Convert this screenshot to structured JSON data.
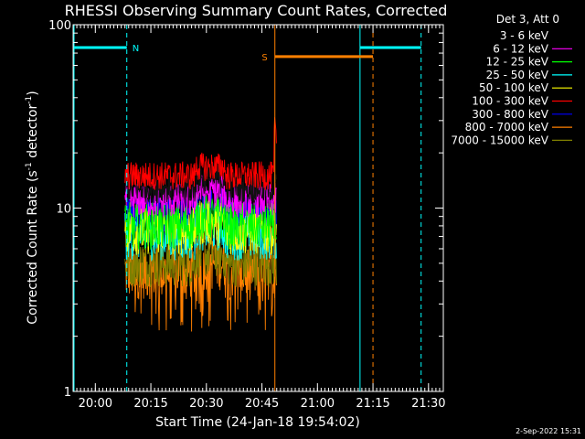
{
  "chart_data": {
    "type": "line",
    "title": "RHESSI Observing Summary Count Rates, Corrected",
    "xlabel": "Start Time (24-Jan-18 19:54:02)",
    "ylabel_main": "Corrected Count Rate (s",
    "ylabel_sup1": "-1",
    "ylabel_mid": " detector",
    "ylabel_sup2": "-1",
    "ylabel_end": ")",
    "y_scale": "log",
    "ylim": [
      1,
      100
    ],
    "xlim_minutes_after_1954": [
      0,
      100
    ],
    "x_ticks": [
      {
        "label": "20:00",
        "t": 6
      },
      {
        "label": "20:15",
        "t": 21
      },
      {
        "label": "20:30",
        "t": 36
      },
      {
        "label": "20:45",
        "t": 51
      },
      {
        "label": "21:00",
        "t": 66
      },
      {
        "label": "21:15",
        "t": 81
      },
      {
        "label": "21:30",
        "t": 96
      }
    ],
    "y_ticks": [
      {
        "label": "1",
        "v": 1
      },
      {
        "label": "10",
        "v": 10
      },
      {
        "label": "100",
        "v": 100
      }
    ],
    "legend_header": "Det 3, Att 0",
    "legend_position": "right",
    "series": [
      {
        "name": "3 - 6 keV",
        "color": "#000000",
        "approx_level": 13,
        "spread": 0.2
      },
      {
        "name": "6 - 12 keV",
        "color": "#ff00ff",
        "approx_level": 11,
        "spread": 0.22
      },
      {
        "name": "12 - 25 keV",
        "color": "#00ff00",
        "approx_level": 8,
        "spread": 0.3
      },
      {
        "name": "25 - 50 keV",
        "color": "#00ffff",
        "approx_level": 7,
        "spread": 0.3
      },
      {
        "name": "50 - 100 keV",
        "color": "#ffff00",
        "approx_level": 7.5,
        "spread": 0.3
      },
      {
        "name": "100 - 300 keV",
        "color": "#ff0000",
        "approx_level": 15,
        "spread": 0.18
      },
      {
        "name": "300 - 800 keV",
        "color": "#0000ff",
        "approx_level": 9,
        "spread": 0.25
      },
      {
        "name": "800 - 7000 keV",
        "color": "#ff8000",
        "approx_level": 4.5,
        "spread": 0.35
      },
      {
        "name": "7000 - 15000 keV",
        "color": "#808000",
        "approx_level": 5,
        "spread": 0.3
      }
    ],
    "data_interval_minutes": [
      14,
      55
    ],
    "annotations": {
      "night_label": "N",
      "saa_label": "S",
      "night_intervals": [
        [
          -3,
          14.5
        ],
        [
          77.5,
          94
        ]
      ],
      "saa_interval": [
        54.5,
        81
      ],
      "night_color": "#00ffff",
      "saa_color": "#ff8000"
    },
    "grid": false
  },
  "footer": {
    "date_stamp": "2-Sep-2022 15:31"
  }
}
